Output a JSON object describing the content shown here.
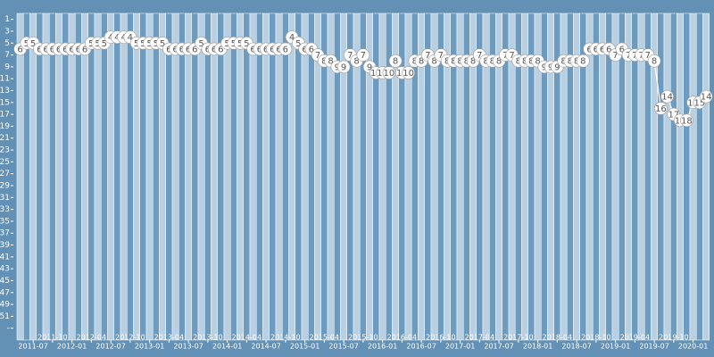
{
  "chart_data": {
    "type": "line",
    "color": "#ffffff",
    "reversed": true,
    "x": [
      "2011-05",
      "2011-06",
      "2011-07",
      "2011-08",
      "2011-09",
      "2011-10",
      "2011-11",
      "2011-12",
      "2012-01",
      "2012-02",
      "2012-03",
      "2012-04",
      "2012-05",
      "2012-06",
      "2012-07",
      "2012-08",
      "2012-09",
      "2012-10",
      "2012-11",
      "2012-12",
      "2013-01",
      "2013-02",
      "2013-03",
      "2013-04",
      "2013-05",
      "2013-06",
      "2013-07",
      "2013-08",
      "2013-09",
      "2013-10",
      "2013-11",
      "2013-12",
      "2014-01",
      "2014-02",
      "2014-03",
      "2014-04",
      "2014-05",
      "2014-06",
      "2014-07",
      "2014-08",
      "2014-09",
      "2014-10",
      "2014-11",
      "2014-12",
      "2015-01",
      "2015-02",
      "2015-03",
      "2015-04",
      "2015-05",
      "2015-06",
      "2015-07",
      "2015-08",
      "2015-09",
      "2015-10",
      "2015-11",
      "2015-12",
      "2016-01",
      "2016-02",
      "2016-03",
      "2016-04",
      "2016-05",
      "2016-06",
      "2016-07",
      "2016-08",
      "2016-09",
      "2016-10",
      "2016-11",
      "2016-12",
      "2017-01",
      "2017-02",
      "2017-03",
      "2017-04",
      "2017-05",
      "2017-06",
      "2017-07",
      "2017-08",
      "2017-09",
      "2017-10",
      "2017-11",
      "2017-12",
      "2018-01",
      "2018-02",
      "2018-03",
      "2018-04",
      "2018-05",
      "2018-06",
      "2018-07",
      "2018-08",
      "2018-09",
      "2018-10",
      "2018-11",
      "2018-12",
      "2019-01",
      "2019-02",
      "2019-03",
      "2019-04",
      "2019-05",
      "2019-06",
      "2019-07",
      "2019-08",
      "2019-09",
      "2019-10",
      "2019-11",
      "2019-12",
      "2020-01",
      "2020-02",
      "2020-03"
    ],
    "values": [
      6,
      5,
      5,
      6,
      6,
      6,
      6,
      6,
      6,
      6,
      6,
      5,
      5,
      5,
      4,
      4,
      4,
      4,
      5,
      5,
      5,
      5,
      5,
      6,
      6,
      6,
      6,
      6,
      5,
      6,
      6,
      6,
      5,
      5,
      5,
      5,
      6,
      6,
      6,
      6,
      6,
      6,
      4,
      5,
      6,
      6,
      7,
      8,
      8,
      9,
      9,
      7,
      8,
      7,
      9,
      10,
      10,
      10,
      8,
      10,
      10,
      8,
      8,
      7,
      8,
      7,
      8,
      8,
      8,
      8,
      8,
      7,
      8,
      8,
      8,
      7,
      7,
      8,
      8,
      8,
      8,
      9,
      9,
      9,
      8,
      8,
      8,
      8,
      6,
      6,
      6,
      6,
      7,
      6,
      7,
      7,
      7,
      7,
      8,
      16,
      14,
      17,
      18,
      18,
      15,
      15,
      14
    ],
    "xticks": [
      "2011-07",
      "2011-10",
      "2012-01",
      "2012-04",
      "2012-07",
      "2012-10",
      "2013-01",
      "2013-04",
      "2013-07",
      "2013-10",
      "2014-01",
      "2014-04",
      "2014-07",
      "2014-10",
      "2015-01",
      "2015-04",
      "2015-07",
      "2015-10",
      "2016-01",
      "2016-04",
      "2016-07",
      "2016-10",
      "2017-01",
      "2017-04",
      "2017-07",
      "2017-10",
      "2018-01",
      "2018-04",
      "2018-07",
      "2018-10",
      "2019-01",
      "2019-04",
      "2019-07",
      "2019-10",
      "2020-01"
    ],
    "ylim": [
      0,
      55
    ],
    "yticks": [
      1,
      3,
      5,
      7,
      9,
      11,
      13,
      15,
      17,
      19,
      21,
      23,
      25,
      27,
      29,
      31,
      33,
      35,
      37,
      39,
      41,
      43,
      45,
      47,
      49,
      51,
      {
        "value": 53,
        "label": "-"
      }
    ]
  }
}
